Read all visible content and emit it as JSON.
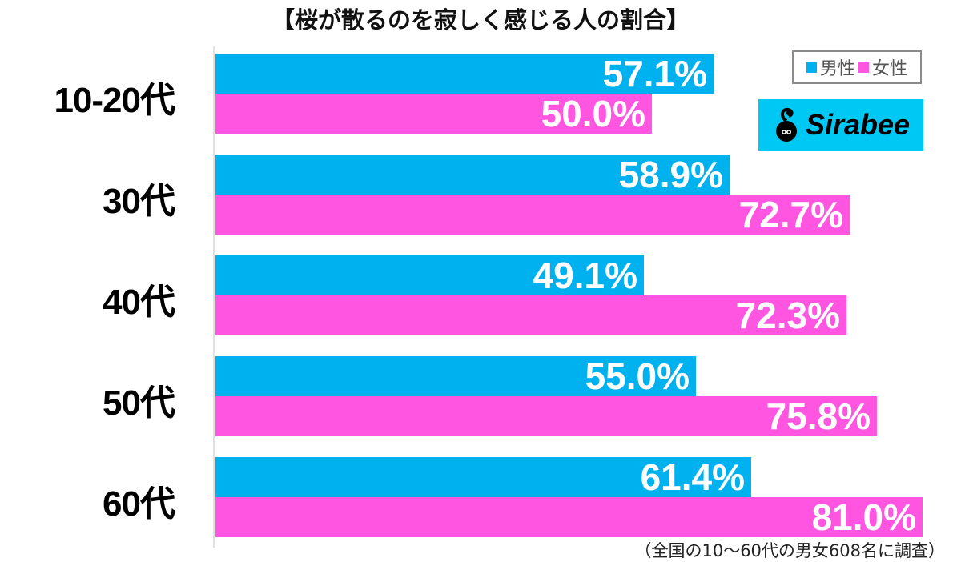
{
  "chart_data": {
    "type": "bar",
    "orientation": "horizontal",
    "title": "【桜が散るのを寂しく感じる人の割合】",
    "categories": [
      "10-20代",
      "30代",
      "40代",
      "50代",
      "60代"
    ],
    "series": [
      {
        "name": "男性",
        "color": "#00b1f0",
        "values": [
          57.1,
          58.9,
          49.1,
          55.0,
          61.4
        ],
        "labels": [
          "57.1%",
          "58.9%",
          "49.1%",
          "55.0%",
          "61.4%"
        ]
      },
      {
        "name": "女性",
        "color": "#ff55e0",
        "values": [
          50.0,
          72.7,
          72.3,
          75.8,
          81.0
        ],
        "labels": [
          "50.0%",
          "72.7%",
          "72.3%",
          "75.8%",
          "81.0%"
        ]
      }
    ],
    "xlabel": "",
    "ylabel": "",
    "unit": "%",
    "grid": false,
    "legend_position": "top-right",
    "annotation": "（全国の10〜60代の男女608名に調査）"
  },
  "title": "【桜が散るのを寂しく感じる人の割合】",
  "legend": {
    "male": "男性",
    "female": "女性"
  },
  "logo": {
    "text": "Sirabee"
  },
  "footnote": "（全国の10〜60代の男女608名に調査）",
  "colors": {
    "male": "#00b1f0",
    "female": "#ff55e0",
    "logo_bg": "#00c8f5"
  }
}
